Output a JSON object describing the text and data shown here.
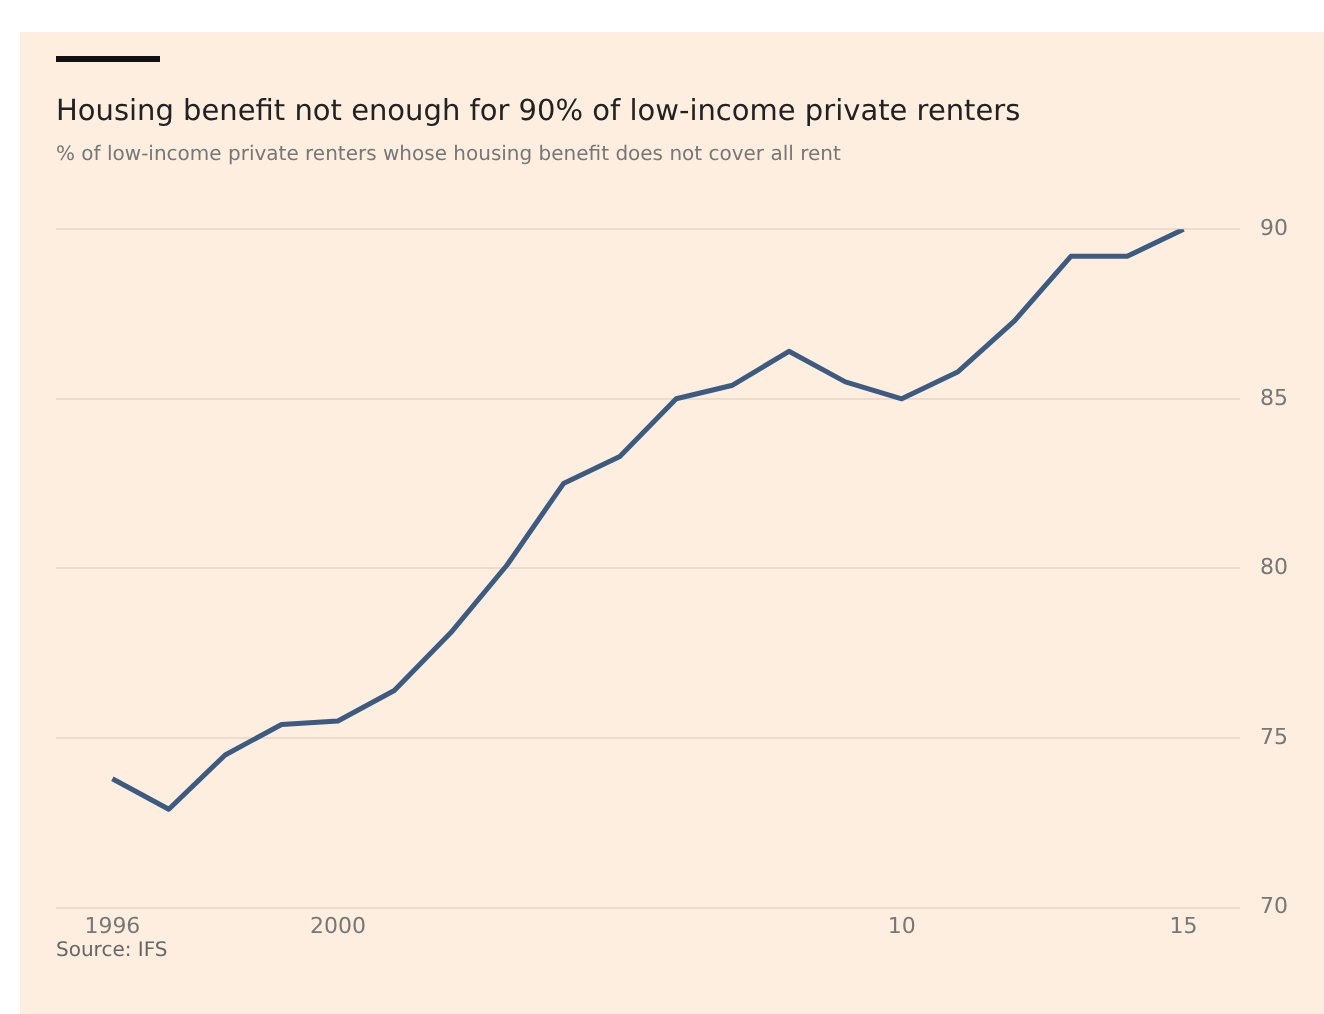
{
  "chart_data": {
    "type": "line",
    "title": "Housing benefit not enough for 90% of low-income private renters",
    "subtitle": "% of low-income private renters whose housing benefit does not cover all rent",
    "x": [
      1996,
      1997,
      1998,
      1999,
      2000,
      2001,
      2002,
      2003,
      2004,
      2005,
      2006,
      2007,
      2008,
      2009,
      2010,
      2011,
      2012,
      2013,
      2014,
      2015
    ],
    "series": [
      {
        "color": "#3d5a80",
        "values": [
          73.8,
          72.9,
          74.5,
          75.4,
          75.5,
          76.4,
          78.1,
          80.1,
          82.5,
          83.3,
          85.0,
          85.4,
          86.4,
          85.5,
          85.0,
          85.8,
          87.3,
          89.2,
          89.2,
          90.0
        ]
      }
    ],
    "xlim": [
      1995,
      2016
    ],
    "xticks": [
      1996,
      2000,
      {
        "value": 2010,
        "label": "10"
      },
      {
        "value": 2015,
        "label": "15"
      }
    ],
    "ylim": [
      70,
      90
    ],
    "yticks": [
      70,
      75,
      80,
      85,
      90
    ],
    "grid": "y",
    "legend": false,
    "marker": "none",
    "line_style": "solid",
    "annotations": [
      "Source: IFS"
    ]
  }
}
